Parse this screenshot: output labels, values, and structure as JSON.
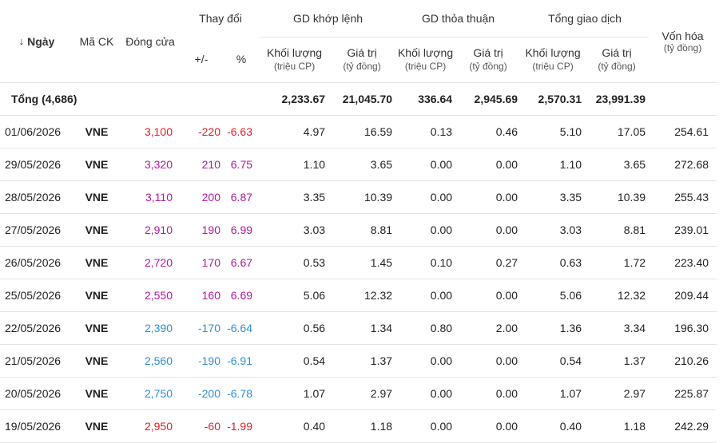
{
  "headers": {
    "date": "Ngày",
    "symbol": "Mã CK",
    "close": "Đóng cửa",
    "change": "Thay đổi",
    "change_abs": "+/-",
    "change_pct": "%",
    "matched": "GD khớp lệnh",
    "negotiated": "GD thỏa thuận",
    "total": "Tổng giao dịch",
    "volume": "Khối lượng",
    "volume_unit": "(triệu CP)",
    "value": "Giá trị",
    "value_unit": "(tỷ đồng)",
    "market_cap": "Vốn hóa",
    "market_cap_unit": "(tỷ đồng)"
  },
  "sort_icon": "arrow-down-icon",
  "colors": {
    "up": "#b5179e",
    "down": "#2f8fd1",
    "reference": "#e31e24"
  },
  "total_row": {
    "label": "Tổng (4,686)",
    "matched_volume": "2,233.67",
    "matched_value": "21,045.70",
    "negotiated_volume": "336.64",
    "negotiated_value": "2,945.69",
    "total_volume": "2,570.31",
    "total_value": "23,991.39"
  },
  "rows": [
    {
      "date": "01/06/2026",
      "symbol": "VNE",
      "close": "3,100",
      "change": "-220",
      "pct": "-6.63",
      "mv": "4.97",
      "mval": "16.59",
      "nv": "0.13",
      "nval": "0.46",
      "tv": "5.10",
      "tval": "17.05",
      "cap": "254.61",
      "close_color": "ref",
      "change_color": "ref"
    },
    {
      "date": "29/05/2026",
      "symbol": "VNE",
      "close": "3,320",
      "change": "210",
      "pct": "6.75",
      "mv": "1.10",
      "mval": "3.65",
      "nv": "0.00",
      "nval": "0.00",
      "tv": "1.10",
      "tval": "3.65",
      "cap": "272.68",
      "close_color": "up",
      "change_color": "up"
    },
    {
      "date": "28/05/2026",
      "symbol": "VNE",
      "close": "3,110",
      "change": "200",
      "pct": "6.87",
      "mv": "3.35",
      "mval": "10.39",
      "nv": "0.00",
      "nval": "0.00",
      "tv": "3.35",
      "tval": "10.39",
      "cap": "255.43",
      "close_color": "up",
      "change_color": "up"
    },
    {
      "date": "27/05/2026",
      "symbol": "VNE",
      "close": "2,910",
      "change": "190",
      "pct": "6.99",
      "mv": "3.03",
      "mval": "8.81",
      "nv": "0.00",
      "nval": "0.00",
      "tv": "3.03",
      "tval": "8.81",
      "cap": "239.01",
      "close_color": "up",
      "change_color": "up"
    },
    {
      "date": "26/05/2026",
      "symbol": "VNE",
      "close": "2,720",
      "change": "170",
      "pct": "6.67",
      "mv": "0.53",
      "mval": "1.45",
      "nv": "0.10",
      "nval": "0.27",
      "tv": "0.63",
      "tval": "1.72",
      "cap": "223.40",
      "close_color": "up",
      "change_color": "up"
    },
    {
      "date": "25/05/2026",
      "symbol": "VNE",
      "close": "2,550",
      "change": "160",
      "pct": "6.69",
      "mv": "5.06",
      "mval": "12.32",
      "nv": "0.00",
      "nval": "0.00",
      "tv": "5.06",
      "tval": "12.32",
      "cap": "209.44",
      "close_color": "up",
      "change_color": "up"
    },
    {
      "date": "22/05/2026",
      "symbol": "VNE",
      "close": "2,390",
      "change": "-170",
      "pct": "-6.64",
      "mv": "0.56",
      "mval": "1.34",
      "nv": "0.80",
      "nval": "2.00",
      "tv": "1.36",
      "tval": "3.34",
      "cap": "196.30",
      "close_color": "down",
      "change_color": "down"
    },
    {
      "date": "21/05/2026",
      "symbol": "VNE",
      "close": "2,560",
      "change": "-190",
      "pct": "-6.91",
      "mv": "0.54",
      "mval": "1.37",
      "nv": "0.00",
      "nval": "0.00",
      "tv": "0.54",
      "tval": "1.37",
      "cap": "210.26",
      "close_color": "down",
      "change_color": "down"
    },
    {
      "date": "20/05/2026",
      "symbol": "VNE",
      "close": "2,750",
      "change": "-200",
      "pct": "-6.78",
      "mv": "1.07",
      "mval": "2.97",
      "nv": "0.00",
      "nval": "0.00",
      "tv": "1.07",
      "tval": "2.97",
      "cap": "225.87",
      "close_color": "down",
      "change_color": "down"
    },
    {
      "date": "19/05/2026",
      "symbol": "VNE",
      "close": "2,950",
      "change": "-60",
      "pct": "-1.99",
      "mv": "0.40",
      "mval": "1.18",
      "nv": "0.00",
      "nval": "0.00",
      "tv": "0.40",
      "tval": "1.18",
      "cap": "242.29",
      "close_color": "ref",
      "change_color": "ref"
    }
  ]
}
